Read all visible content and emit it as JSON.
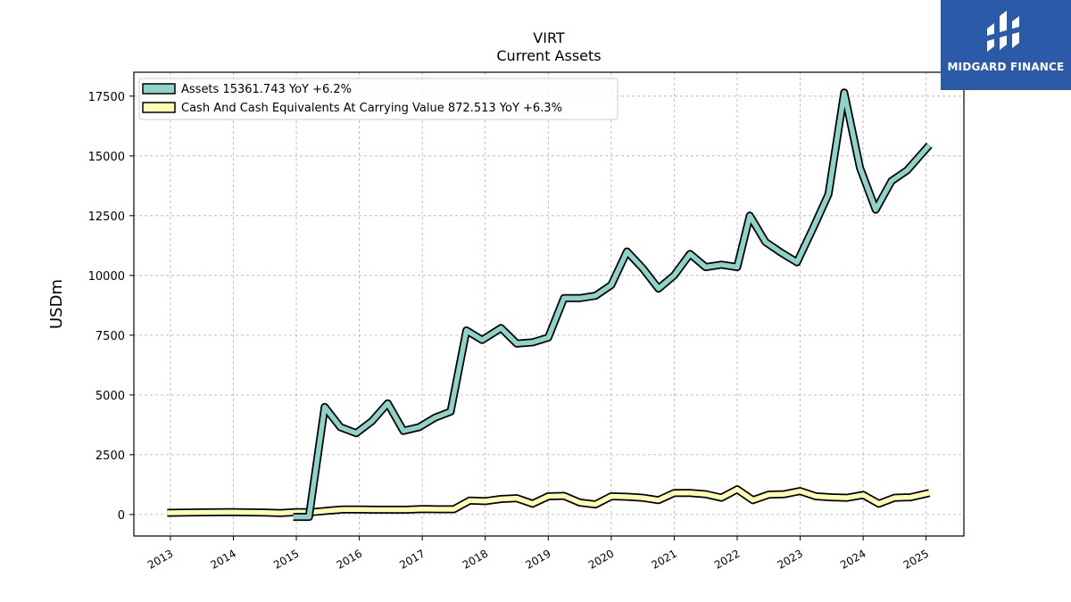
{
  "brand": {
    "name": "MIDGARD FINANCE",
    "background": "#2a5aa8"
  },
  "chart_data": {
    "type": "line",
    "title": "VIRT",
    "subtitle": "Current  Assets",
    "ylabel": "USDm",
    "xlabel": "",
    "xlim": [
      2012.42,
      2025.6
    ],
    "ylim": [
      -900,
      18500
    ],
    "x_ticks": [
      2013,
      2014,
      2015,
      2016,
      2017,
      2018,
      2019,
      2020,
      2021,
      2022,
      2023,
      2024,
      2025
    ],
    "x_tick_labels": [
      "2013",
      "2014",
      "2015",
      "2016",
      "2017",
      "2018",
      "2019",
      "2020",
      "2021",
      "2022",
      "2023",
      "2024",
      "2025"
    ],
    "y_ticks": [
      0,
      2500,
      5000,
      7500,
      10000,
      12500,
      15000,
      17500
    ],
    "y_tick_labels": [
      "0",
      "2500",
      "5000",
      "7500",
      "10000",
      "12500",
      "15000",
      "17500"
    ],
    "grid": true,
    "legend_position": "top-left",
    "series": [
      {
        "name": "Assets",
        "legend_label": "Assets  15361.743 YoY +6.2%",
        "color": "#8dd3c7",
        "points": [
          [
            2014.95,
            -100
          ],
          [
            2015.2,
            -100
          ],
          [
            2015.45,
            4500
          ],
          [
            2015.7,
            3650
          ],
          [
            2015.95,
            3400
          ],
          [
            2016.2,
            3900
          ],
          [
            2016.45,
            4650
          ],
          [
            2016.7,
            3500
          ],
          [
            2016.95,
            3650
          ],
          [
            2017.2,
            4050
          ],
          [
            2017.45,
            4300
          ],
          [
            2017.7,
            7700
          ],
          [
            2017.95,
            7300
          ],
          [
            2018.25,
            7800
          ],
          [
            2018.5,
            7150
          ],
          [
            2018.75,
            7200
          ],
          [
            2019.0,
            7400
          ],
          [
            2019.25,
            9050
          ],
          [
            2019.5,
            9050
          ],
          [
            2019.75,
            9150
          ],
          [
            2020.0,
            9600
          ],
          [
            2020.25,
            11000
          ],
          [
            2020.5,
            10300
          ],
          [
            2020.75,
            9450
          ],
          [
            2021.0,
            10000
          ],
          [
            2021.25,
            10900
          ],
          [
            2021.5,
            10350
          ],
          [
            2021.75,
            10450
          ],
          [
            2022.0,
            10350
          ],
          [
            2022.2,
            12500
          ],
          [
            2022.45,
            11400
          ],
          [
            2022.7,
            10950
          ],
          [
            2022.95,
            10550
          ],
          [
            2023.2,
            11950
          ],
          [
            2023.45,
            13400
          ],
          [
            2023.7,
            17650
          ],
          [
            2023.95,
            14500
          ],
          [
            2024.2,
            12750
          ],
          [
            2024.45,
            13950
          ],
          [
            2024.7,
            14400
          ],
          [
            2025.05,
            15450
          ]
        ]
      },
      {
        "name": "Cash And Cash Equivalents At Carrying Value",
        "legend_label": "Cash And Cash Equivalents At Carrying Value  872.513 YoY +6.3%",
        "color": "#ffffb3",
        "points": [
          [
            2012.95,
            70
          ],
          [
            2013.5,
            90
          ],
          [
            2014.0,
            100
          ],
          [
            2014.5,
            80
          ],
          [
            2014.75,
            60
          ],
          [
            2015.0,
            100
          ],
          [
            2015.25,
            100
          ],
          [
            2015.5,
            160
          ],
          [
            2015.75,
            210
          ],
          [
            2016.0,
            210
          ],
          [
            2016.25,
            200
          ],
          [
            2016.5,
            200
          ],
          [
            2016.75,
            200
          ],
          [
            2017.0,
            230
          ],
          [
            2017.25,
            220
          ],
          [
            2017.5,
            220
          ],
          [
            2017.75,
            580
          ],
          [
            2018.0,
            560
          ],
          [
            2018.25,
            650
          ],
          [
            2018.5,
            680
          ],
          [
            2018.75,
            450
          ],
          [
            2019.0,
            760
          ],
          [
            2019.25,
            780
          ],
          [
            2019.5,
            500
          ],
          [
            2019.75,
            420
          ],
          [
            2020.0,
            760
          ],
          [
            2020.25,
            740
          ],
          [
            2020.5,
            700
          ],
          [
            2020.75,
            600
          ],
          [
            2021.0,
            900
          ],
          [
            2021.25,
            900
          ],
          [
            2021.5,
            850
          ],
          [
            2021.75,
            700
          ],
          [
            2022.0,
            1050
          ],
          [
            2022.25,
            600
          ],
          [
            2022.5,
            830
          ],
          [
            2022.75,
            850
          ],
          [
            2023.0,
            980
          ],
          [
            2023.25,
            760
          ],
          [
            2023.5,
            720
          ],
          [
            2023.75,
            700
          ],
          [
            2024.0,
            820
          ],
          [
            2024.25,
            450
          ],
          [
            2024.5,
            700
          ],
          [
            2024.75,
            720
          ],
          [
            2025.05,
            900
          ]
        ]
      }
    ]
  }
}
